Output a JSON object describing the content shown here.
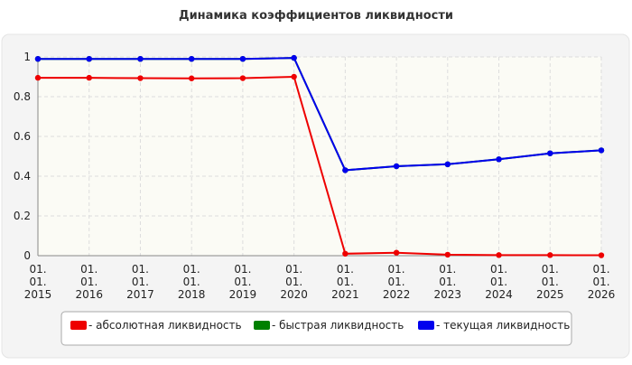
{
  "chart_data": {
    "type": "line",
    "title": "Динамика коэффициентов ликвидности",
    "categories": [
      "01.01.2015",
      "01.01.2016",
      "01.01.2017",
      "01.01.2018",
      "01.01.2019",
      "01.01.2020",
      "01.01.2021",
      "01.01.2022",
      "01.01.2023",
      "01.01.2024",
      "01.01.2025",
      "01.01.2026"
    ],
    "series": [
      {
        "name": "- абсолютная ликвидность",
        "color": "#ee0000",
        "values": [
          0.895,
          0.895,
          0.893,
          0.892,
          0.893,
          0.9,
          0.01,
          0.015,
          0.005,
          0.003,
          0.003,
          0.002
        ]
      },
      {
        "name": "- быстрая ликвидность",
        "color": "#008000",
        "values": [
          0.99,
          0.99,
          0.99,
          0.99,
          0.99,
          0.995,
          0.43,
          0.45,
          0.46,
          0.485,
          0.515,
          0.53
        ]
      },
      {
        "name": "- текущая ликвидность",
        "color": "#0000ee",
        "values": [
          0.99,
          0.99,
          0.99,
          0.99,
          0.99,
          0.995,
          0.43,
          0.45,
          0.46,
          0.485,
          0.515,
          0.53
        ]
      }
    ],
    "ylim": [
      0,
      1
    ],
    "yticks": [
      0,
      0.2,
      0.4,
      0.6,
      0.8,
      1
    ],
    "grid": true
  }
}
